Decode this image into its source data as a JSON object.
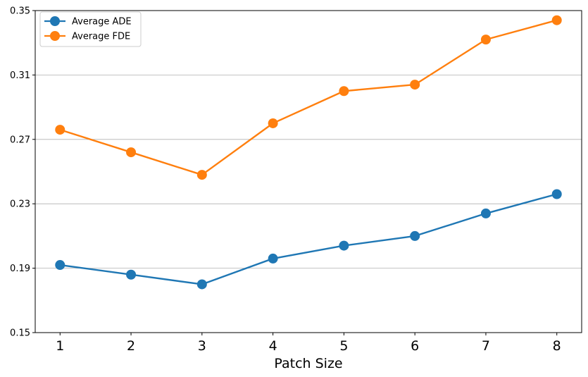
{
  "chart_data": {
    "type": "line",
    "title": "",
    "xlabel": "Patch Size",
    "ylabel": "",
    "x": [
      1,
      2,
      3,
      4,
      5,
      6,
      7,
      8
    ],
    "xlim": [
      0.65,
      8.35
    ],
    "ylim": [
      0.15,
      0.35
    ],
    "yticks": [
      0.15,
      0.19,
      0.23,
      0.27,
      0.31,
      0.35
    ],
    "ytick_labels": [
      "0.15",
      "0.19",
      "0.23",
      "0.27",
      "0.31",
      "0.35"
    ],
    "xtick_labels": [
      "1",
      "2",
      "3",
      "4",
      "5",
      "6",
      "7",
      "8"
    ],
    "grid": "y-axis only",
    "legend_position": "upper-left",
    "series": [
      {
        "name": "Average ADE",
        "color": "#1f77b4",
        "values": [
          0.192,
          0.186,
          0.18,
          0.196,
          0.204,
          0.21,
          0.224,
          0.236
        ]
      },
      {
        "name": "Average FDE",
        "color": "#ff7f0e",
        "values": [
          0.276,
          0.262,
          0.248,
          0.28,
          0.3,
          0.304,
          0.332,
          0.344
        ]
      }
    ]
  }
}
